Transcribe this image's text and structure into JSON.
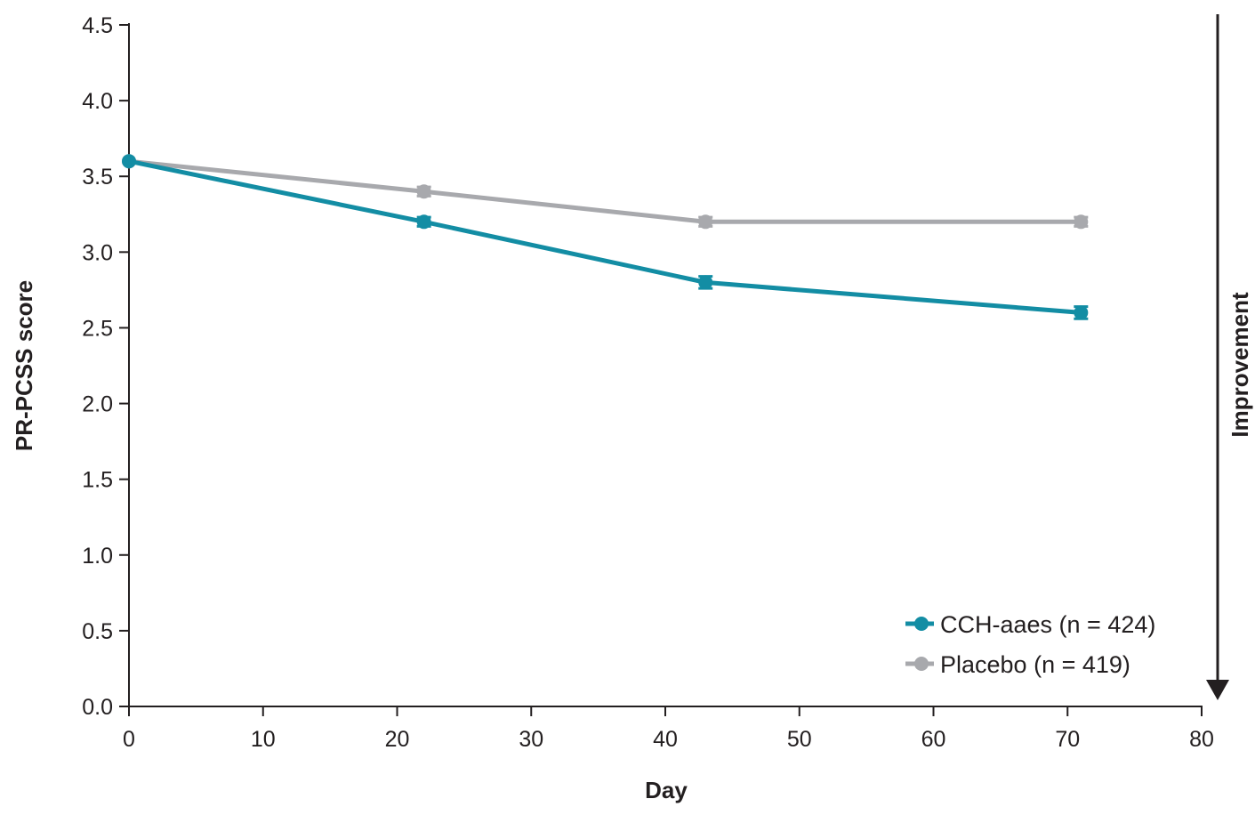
{
  "chart_data": {
    "type": "line",
    "title": "",
    "xlabel": "Day",
    "ylabel": "PR-PCSS score",
    "xlim": [
      0,
      80
    ],
    "ylim": [
      0,
      4.5
    ],
    "xticks": [
      0,
      10,
      20,
      30,
      40,
      50,
      60,
      70,
      80
    ],
    "xtick_labels": [
      "0",
      "10",
      "20",
      "30",
      "40",
      "50",
      "60",
      "70",
      "80"
    ],
    "yticks": [
      0,
      0.5,
      1,
      1.5,
      2,
      2.5,
      3,
      3.5,
      4,
      4.5
    ],
    "ytick_labels": [
      "0.0",
      "0.5",
      "1.0",
      "1.5",
      "2.0",
      "2.5",
      "3.0",
      "3.5",
      "4.0",
      "4.5"
    ],
    "grid": false,
    "legend_position": "bottom-right",
    "annotation": {
      "text": "Improvement",
      "direction": "down"
    },
    "series": [
      {
        "name": "CCH-aaes (n = 424)",
        "color": "#138da4",
        "x": [
          0,
          22,
          43,
          71
        ],
        "y": [
          3.6,
          3.2,
          2.8,
          2.6
        ],
        "error": [
          0,
          0.03,
          0.04,
          0.04
        ]
      },
      {
        "name": "Placebo (n = 419)",
        "color": "#a8a9ad",
        "x": [
          0,
          22,
          43,
          71
        ],
        "y": [
          3.6,
          3.4,
          3.2,
          3.2
        ],
        "error": [
          0,
          0.03,
          0.03,
          0.03
        ]
      }
    ]
  }
}
